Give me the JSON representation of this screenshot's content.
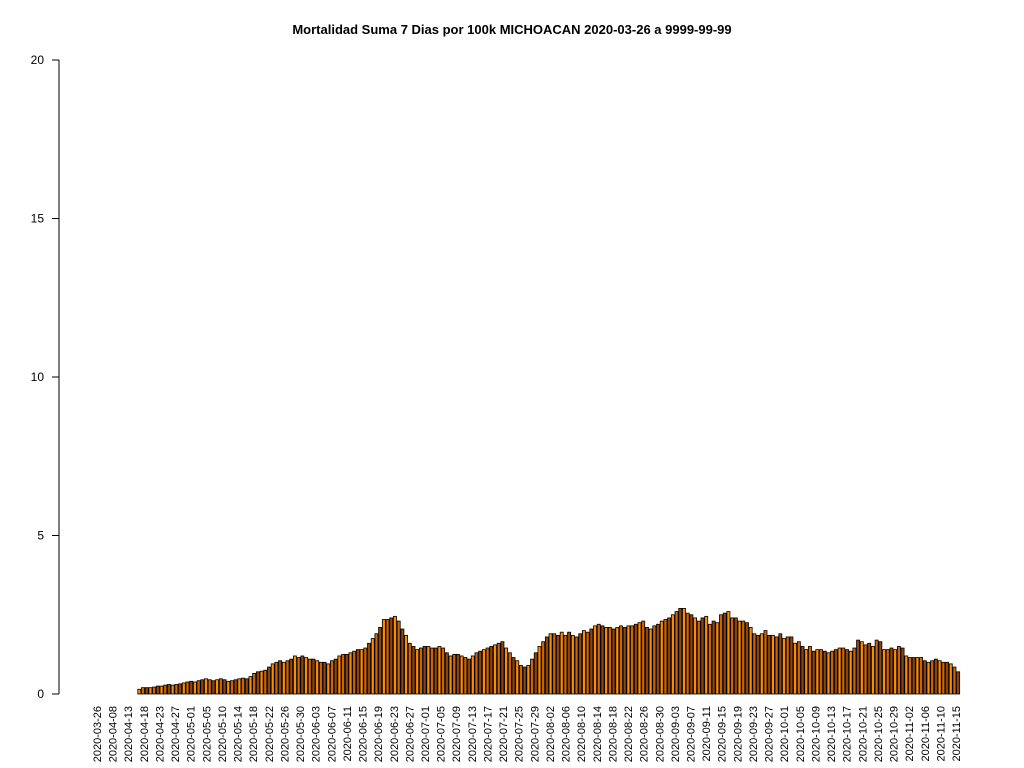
{
  "chart_data": {
    "type": "bar",
    "title": "Mortalidad Suma 7 Dias por 100k MICHOACAN 2020-03-26 a 9999-99-99",
    "xlabel": "",
    "ylabel": "",
    "ylim": [
      0,
      20
    ],
    "yticks": [
      0,
      5,
      10,
      15,
      20
    ],
    "x_tick_labels": [
      "2020-03-26",
      "2020-04-08",
      "2020-04-13",
      "2020-04-18",
      "2020-04-23",
      "2020-04-27",
      "2020-05-01",
      "2020-05-05",
      "2020-05-10",
      "2020-05-14",
      "2020-05-18",
      "2020-05-22",
      "2020-05-26",
      "2020-05-30",
      "2020-06-03",
      "2020-06-07",
      "2020-06-11",
      "2020-06-15",
      "2020-06-19",
      "2020-06-23",
      "2020-06-27",
      "2020-07-01",
      "2020-07-05",
      "2020-07-09",
      "2020-07-13",
      "2020-07-17",
      "2020-07-21",
      "2020-07-25",
      "2020-07-29",
      "2020-08-02",
      "2020-08-06",
      "2020-08-10",
      "2020-08-14",
      "2020-08-18",
      "2020-08-22",
      "2020-08-26",
      "2020-08-30",
      "2020-09-03",
      "2020-09-07",
      "2020-09-11",
      "2020-09-15",
      "2020-09-19",
      "2020-09-23",
      "2020-09-27",
      "2020-10-01",
      "2020-10-05",
      "2020-10-09",
      "2020-10-13",
      "2020-10-17",
      "2020-10-21",
      "2020-10-25",
      "2020-10-29",
      "2020-11-02",
      "2020-11-06",
      "2020-11-10",
      "2020-11-15"
    ],
    "colors": [
      "#ff8c00",
      "#cd6600",
      "#8b4513"
    ],
    "values": [
      0,
      0,
      0,
      0,
      0,
      0,
      0,
      0,
      0,
      0,
      0,
      0,
      0.15,
      0.2,
      0.2,
      0.2,
      0.22,
      0.25,
      0.25,
      0.28,
      0.3,
      0.28,
      0.3,
      0.32,
      0.35,
      0.38,
      0.4,
      0.38,
      0.42,
      0.45,
      0.48,
      0.45,
      0.42,
      0.45,
      0.48,
      0.45,
      0.4,
      0.42,
      0.45,
      0.48,
      0.5,
      0.48,
      0.55,
      0.65,
      0.7,
      0.72,
      0.75,
      0.85,
      0.95,
      1.0,
      1.05,
      1.0,
      1.05,
      1.1,
      1.2,
      1.15,
      1.2,
      1.15,
      1.1,
      1.1,
      1.05,
      1.0,
      1.0,
      0.95,
      1.05,
      1.1,
      1.2,
      1.25,
      1.25,
      1.3,
      1.35,
      1.4,
      1.4,
      1.45,
      1.6,
      1.75,
      1.9,
      2.1,
      2.35,
      2.35,
      2.4,
      2.45,
      2.3,
      2.05,
      1.85,
      1.6,
      1.5,
      1.4,
      1.45,
      1.5,
      1.5,
      1.45,
      1.45,
      1.5,
      1.45,
      1.3,
      1.2,
      1.25,
      1.25,
      1.2,
      1.15,
      1.1,
      1.2,
      1.3,
      1.35,
      1.4,
      1.45,
      1.5,
      1.55,
      1.6,
      1.65,
      1.45,
      1.3,
      1.15,
      1.05,
      0.9,
      0.85,
      0.9,
      1.1,
      1.3,
      1.5,
      1.65,
      1.8,
      1.9,
      1.9,
      1.85,
      1.95,
      1.85,
      1.95,
      1.85,
      1.8,
      1.9,
      2.0,
      1.95,
      2.05,
      2.15,
      2.2,
      2.15,
      2.1,
      2.1,
      2.05,
      2.1,
      2.15,
      2.1,
      2.15,
      2.15,
      2.2,
      2.25,
      2.3,
      2.1,
      2.05,
      2.15,
      2.2,
      2.3,
      2.35,
      2.4,
      2.5,
      2.6,
      2.7,
      2.7,
      2.55,
      2.5,
      2.4,
      2.3,
      2.4,
      2.45,
      2.2,
      2.3,
      2.25,
      2.5,
      2.55,
      2.6,
      2.4,
      2.4,
      2.3,
      2.3,
      2.25,
      2.1,
      1.9,
      1.85,
      1.9,
      2.0,
      1.85,
      1.85,
      1.8,
      1.9,
      1.75,
      1.8,
      1.8,
      1.6,
      1.65,
      1.5,
      1.4,
      1.5,
      1.35,
      1.4,
      1.4,
      1.35,
      1.3,
      1.35,
      1.4,
      1.45,
      1.45,
      1.4,
      1.35,
      1.45,
      1.7,
      1.65,
      1.55,
      1.6,
      1.5,
      1.7,
      1.65,
      1.4,
      1.4,
      1.45,
      1.4,
      1.5,
      1.45,
      1.2,
      1.15,
      1.15,
      1.15,
      1.15,
      1.05,
      1.0,
      1.05,
      1.1,
      1.05,
      1.0,
      1.0,
      0.95,
      0.85,
      0.7
    ]
  }
}
